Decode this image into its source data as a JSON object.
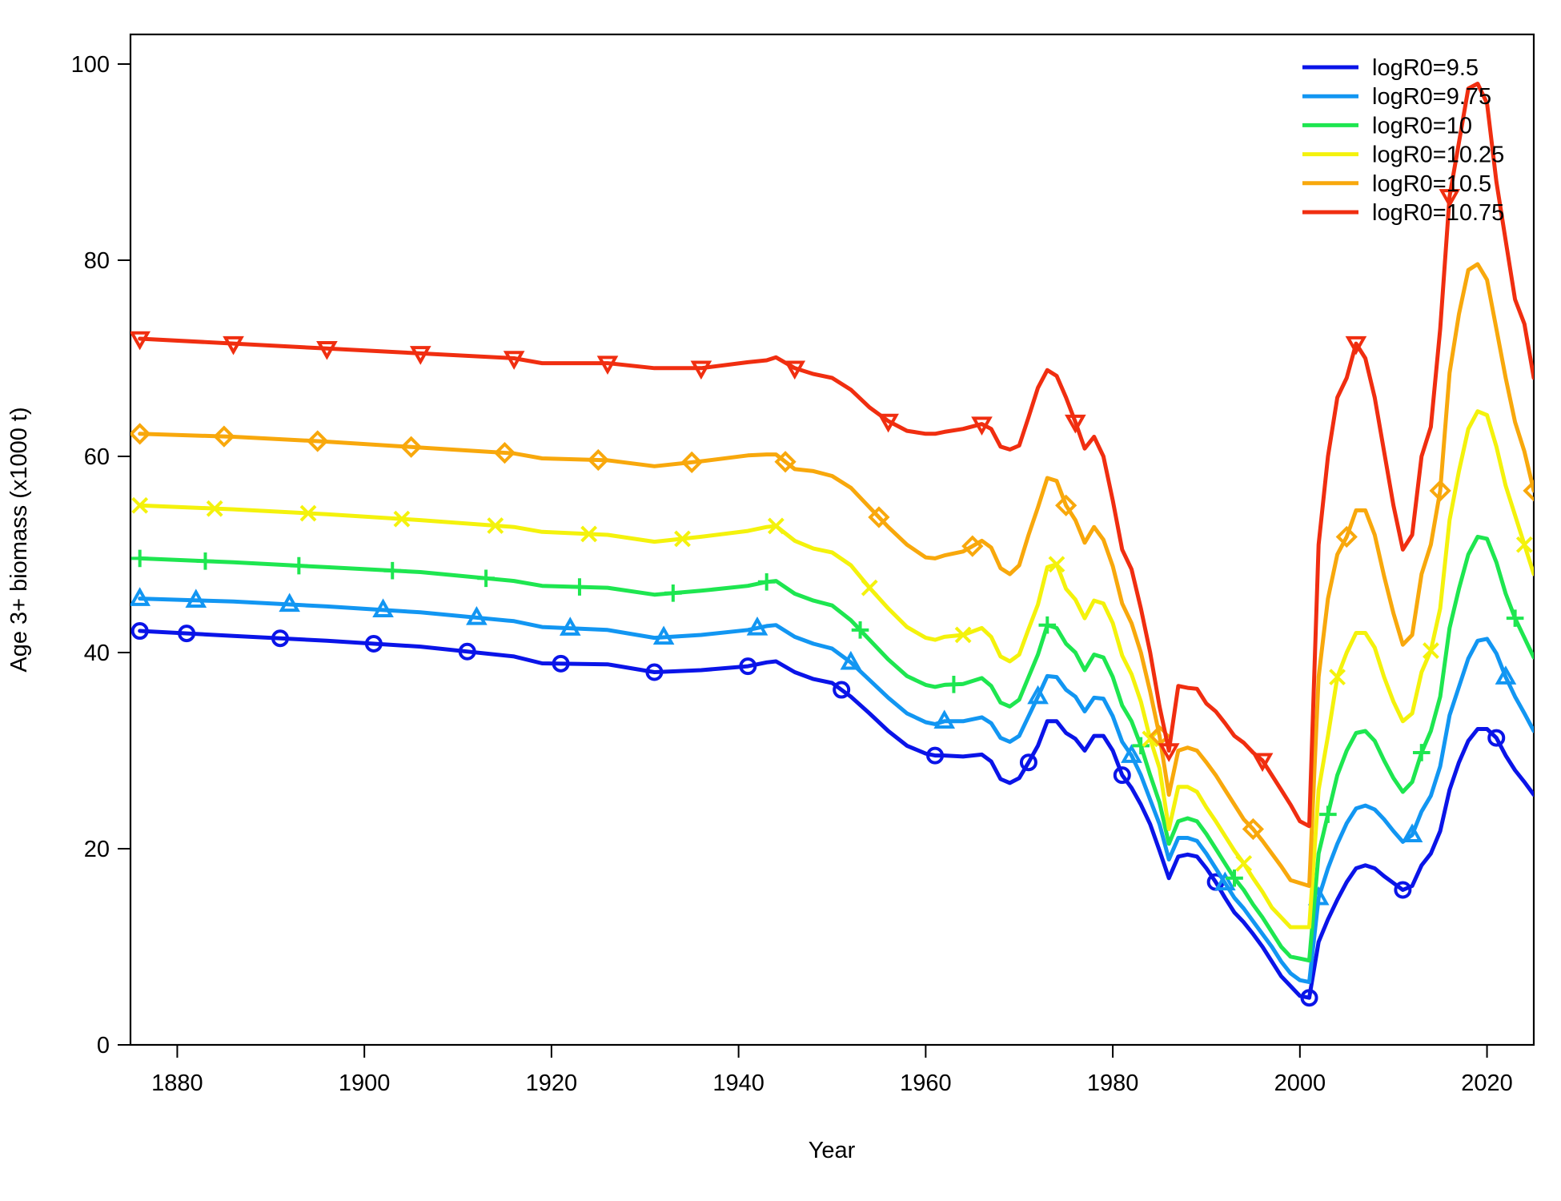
{
  "chart_data": {
    "type": "line",
    "xlabel": "Year",
    "ylabel": "Age 3+ biomass (x1000 t)",
    "xlim": [
      1875,
      2025
    ],
    "ylim": [
      0,
      100
    ],
    "xticks": [
      1880,
      1900,
      1920,
      1940,
      1960,
      1980,
      2000,
      2020
    ],
    "yticks": [
      0,
      20,
      40,
      60,
      80,
      100
    ],
    "x": [
      1876,
      1886,
      1896,
      1906,
      1916,
      1919,
      1926,
      1931,
      1936,
      1941,
      1943,
      1944,
      1946,
      1948,
      1950,
      1952,
      1954,
      1956,
      1958,
      1960,
      1961,
      1962,
      1964,
      1966,
      1967,
      1968,
      1969,
      1970,
      1971,
      1972,
      1973,
      1974,
      1975,
      1976,
      1977,
      1978,
      1979,
      1980,
      1981,
      1982,
      1983,
      1984,
      1985,
      1986,
      1987,
      1988,
      1989,
      1990,
      1991,
      1992,
      1993,
      1994,
      1995,
      1996,
      1997,
      1998,
      1999,
      2000,
      2001,
      2002,
      2003,
      2004,
      2005,
      2006,
      2007,
      2008,
      2009,
      2010,
      2011,
      2012,
      2013,
      2014,
      2015,
      2016,
      2017,
      2018,
      2019,
      2020,
      2021,
      2022,
      2023,
      2024,
      2025
    ],
    "series": [
      {
        "name": "logR0=9.5",
        "color": "#0a14e8",
        "marker": "circle",
        "marker_years": [
          1876,
          1881,
          1891,
          1901,
          1911,
          1921,
          1931,
          1941,
          1951,
          1961,
          1971,
          1981,
          1991,
          2001,
          2011,
          2021
        ],
        "values": [
          42.2,
          41.7,
          41.2,
          40.6,
          39.6,
          38.9,
          38.8,
          38.0,
          38.2,
          38.6,
          39.0,
          39.1,
          38.0,
          37.3,
          36.9,
          35.5,
          33.8,
          32.0,
          30.5,
          29.7,
          29.5,
          29.5,
          29.4,
          29.6,
          28.9,
          27.1,
          26.7,
          27.2,
          28.8,
          30.5,
          33.0,
          33.0,
          31.8,
          31.2,
          30.0,
          31.5,
          31.5,
          30.0,
          27.5,
          26.2,
          24.5,
          22.5,
          19.8,
          17.0,
          19.2,
          19.4,
          19.2,
          18.0,
          16.6,
          15.0,
          13.5,
          12.5,
          11.3,
          10.0,
          8.5,
          7.0,
          6.0,
          5.0,
          4.8,
          10.5,
          12.8,
          14.8,
          16.6,
          18.0,
          18.3,
          18.0,
          17.2,
          16.5,
          15.8,
          16.2,
          18.3,
          19.5,
          21.8,
          26.0,
          28.8,
          31.0,
          32.2,
          32.2,
          31.3,
          29.5,
          28.0,
          26.8,
          25.5
        ]
      },
      {
        "name": "logR0=9.75",
        "color": "#1296f2",
        "marker": "triangle",
        "marker_years": [
          1876,
          1882,
          1892,
          1902,
          1912,
          1922,
          1932,
          1942,
          1952,
          1962,
          1972,
          1982,
          1992,
          2002,
          2012,
          2022
        ],
        "values": [
          45.5,
          45.2,
          44.7,
          44.1,
          43.2,
          42.6,
          42.3,
          41.5,
          41.8,
          42.3,
          42.7,
          42.8,
          41.6,
          40.9,
          40.4,
          39.0,
          37.2,
          35.4,
          33.8,
          32.9,
          32.7,
          33.0,
          33.0,
          33.4,
          32.8,
          31.3,
          30.9,
          31.5,
          33.5,
          35.5,
          37.6,
          37.5,
          36.2,
          35.5,
          34.0,
          35.4,
          35.3,
          33.5,
          30.9,
          29.5,
          27.5,
          25.0,
          22.5,
          18.9,
          21.1,
          21.1,
          20.8,
          19.5,
          18.0,
          16.5,
          15.0,
          13.9,
          12.6,
          11.3,
          10.0,
          8.5,
          7.3,
          6.6,
          6.4,
          15.0,
          18.0,
          20.5,
          22.6,
          24.1,
          24.4,
          24.0,
          23.0,
          21.8,
          20.7,
          21.4,
          23.8,
          25.4,
          28.4,
          33.6,
          36.5,
          39.4,
          41.2,
          41.4,
          39.9,
          37.5,
          35.5,
          33.8,
          32.0
        ]
      },
      {
        "name": "logR0=10",
        "color": "#1ee650",
        "marker": "plus",
        "marker_years": [
          1876,
          1883,
          1893,
          1903,
          1913,
          1923,
          1933,
          1943,
          1953,
          1963,
          1973,
          1983,
          1993,
          2003,
          2013,
          2023
        ],
        "values": [
          49.6,
          49.2,
          48.7,
          48.2,
          47.3,
          46.8,
          46.6,
          45.9,
          46.3,
          46.8,
          47.2,
          47.3,
          46.0,
          45.3,
          44.8,
          43.3,
          41.3,
          39.3,
          37.6,
          36.7,
          36.5,
          36.7,
          36.8,
          37.4,
          36.6,
          34.9,
          34.5,
          35.2,
          37.5,
          39.8,
          42.8,
          42.5,
          40.9,
          40.0,
          38.2,
          39.8,
          39.5,
          37.5,
          34.6,
          33.0,
          30.5,
          27.5,
          24.7,
          20.5,
          22.8,
          23.1,
          22.8,
          21.5,
          20.0,
          18.5,
          17.0,
          15.8,
          14.3,
          13.0,
          11.5,
          10.0,
          9.0,
          8.8,
          8.6,
          19.5,
          23.5,
          27.5,
          30.0,
          31.8,
          32.0,
          31.0,
          29.0,
          27.2,
          25.8,
          26.8,
          29.8,
          32.0,
          35.5,
          42.5,
          46.5,
          50.0,
          51.8,
          51.6,
          49.2,
          46.0,
          43.5,
          41.5,
          39.5
        ]
      },
      {
        "name": "logR0=10.25",
        "color": "#f4f20c",
        "marker": "cross",
        "marker_years": [
          1876,
          1884,
          1894,
          1904,
          1914,
          1924,
          1934,
          1944,
          1954,
          1964,
          1974,
          1984,
          1994,
          2004,
          2014,
          2024
        ],
        "values": [
          55.0,
          54.6,
          54.1,
          53.5,
          52.8,
          52.3,
          52.0,
          51.3,
          51.8,
          52.4,
          52.8,
          52.9,
          51.4,
          50.6,
          50.2,
          48.9,
          46.6,
          44.5,
          42.6,
          41.5,
          41.3,
          41.6,
          41.8,
          42.5,
          41.6,
          39.6,
          39.1,
          39.8,
          42.4,
          44.9,
          48.7,
          49.0,
          46.5,
          45.4,
          43.5,
          45.3,
          45.0,
          43.0,
          39.7,
          37.8,
          35.0,
          31.2,
          28.2,
          22.0,
          26.3,
          26.3,
          25.8,
          24.2,
          22.8,
          21.3,
          19.8,
          18.5,
          17.0,
          15.6,
          14.0,
          13.0,
          12.0,
          12.0,
          12.0,
          26.0,
          31.5,
          37.5,
          40.0,
          42.0,
          42.0,
          40.5,
          37.5,
          35.0,
          33.0,
          33.8,
          38.0,
          40.2,
          44.5,
          53.5,
          58.5,
          62.8,
          64.6,
          64.2,
          61.0,
          57.0,
          54.0,
          51.0,
          48.0
        ]
      },
      {
        "name": "logR0=10.5",
        "color": "#f8a80c",
        "marker": "diamond",
        "marker_years": [
          1876,
          1885,
          1895,
          1905,
          1915,
          1925,
          1935,
          1945,
          1955,
          1965,
          1975,
          1985,
          1995,
          2005,
          2015,
          2025
        ],
        "values": [
          62.3,
          62.0,
          61.5,
          60.9,
          60.3,
          59.8,
          59.6,
          59.0,
          59.5,
          60.1,
          60.2,
          60.2,
          58.7,
          58.5,
          58.0,
          56.8,
          54.8,
          52.8,
          51.0,
          49.7,
          49.6,
          49.9,
          50.3,
          51.4,
          50.7,
          48.6,
          48.0,
          48.9,
          52.0,
          54.8,
          57.8,
          57.5,
          55.0,
          53.5,
          51.2,
          52.8,
          51.5,
          48.8,
          45.0,
          43.0,
          40.0,
          36.0,
          31.5,
          25.5,
          30.0,
          30.3,
          30.0,
          28.8,
          27.5,
          26.0,
          24.5,
          23.0,
          22.0,
          20.8,
          19.5,
          18.2,
          16.8,
          16.5,
          16.2,
          37.5,
          45.5,
          50.0,
          51.8,
          54.5,
          54.5,
          52.0,
          47.8,
          44.0,
          40.8,
          41.8,
          48.0,
          51.0,
          56.5,
          68.5,
          74.5,
          79.0,
          79.6,
          78.0,
          73.0,
          68.0,
          63.5,
          60.5,
          56.5
        ]
      },
      {
        "name": "logR0=10.75",
        "color": "#f02e10",
        "marker": "triangle-down",
        "marker_years": [
          1876,
          1886,
          1896,
          1906,
          1916,
          1926,
          1936,
          1946,
          1956,
          1966,
          1976,
          1986,
          1996,
          2006,
          2016,
          2026
        ],
        "values": [
          72.0,
          71.5,
          71.0,
          70.5,
          70.0,
          69.5,
          69.5,
          69.0,
          69.0,
          69.6,
          69.8,
          70.1,
          69.0,
          68.4,
          68.0,
          66.8,
          65.0,
          63.6,
          62.6,
          62.3,
          62.3,
          62.5,
          62.8,
          63.3,
          62.8,
          61.0,
          60.7,
          61.1,
          64.0,
          67.0,
          68.8,
          68.2,
          66.0,
          63.5,
          60.8,
          62.0,
          60.0,
          55.5,
          50.5,
          48.5,
          44.5,
          40.0,
          34.5,
          30.0,
          36.6,
          36.4,
          36.3,
          34.8,
          34.0,
          32.8,
          31.5,
          30.8,
          29.8,
          29.0,
          27.5,
          26.0,
          24.5,
          22.8,
          22.3,
          51.0,
          60.0,
          66.0,
          68.0,
          71.5,
          70.0,
          66.0,
          60.5,
          55.0,
          50.5,
          52.0,
          60.0,
          63.0,
          73.0,
          86.5,
          92.0,
          97.5,
          98.0,
          96.0,
          88.0,
          82.0,
          76.0,
          73.5,
          68.0
        ]
      }
    ],
    "legend": {
      "position": "top-right",
      "entries": [
        "logR0=9.5",
        "logR0=9.75",
        "logR0=10",
        "logR0=10.25",
        "logR0=10.5",
        "logR0=10.75"
      ]
    },
    "grid": false
  }
}
